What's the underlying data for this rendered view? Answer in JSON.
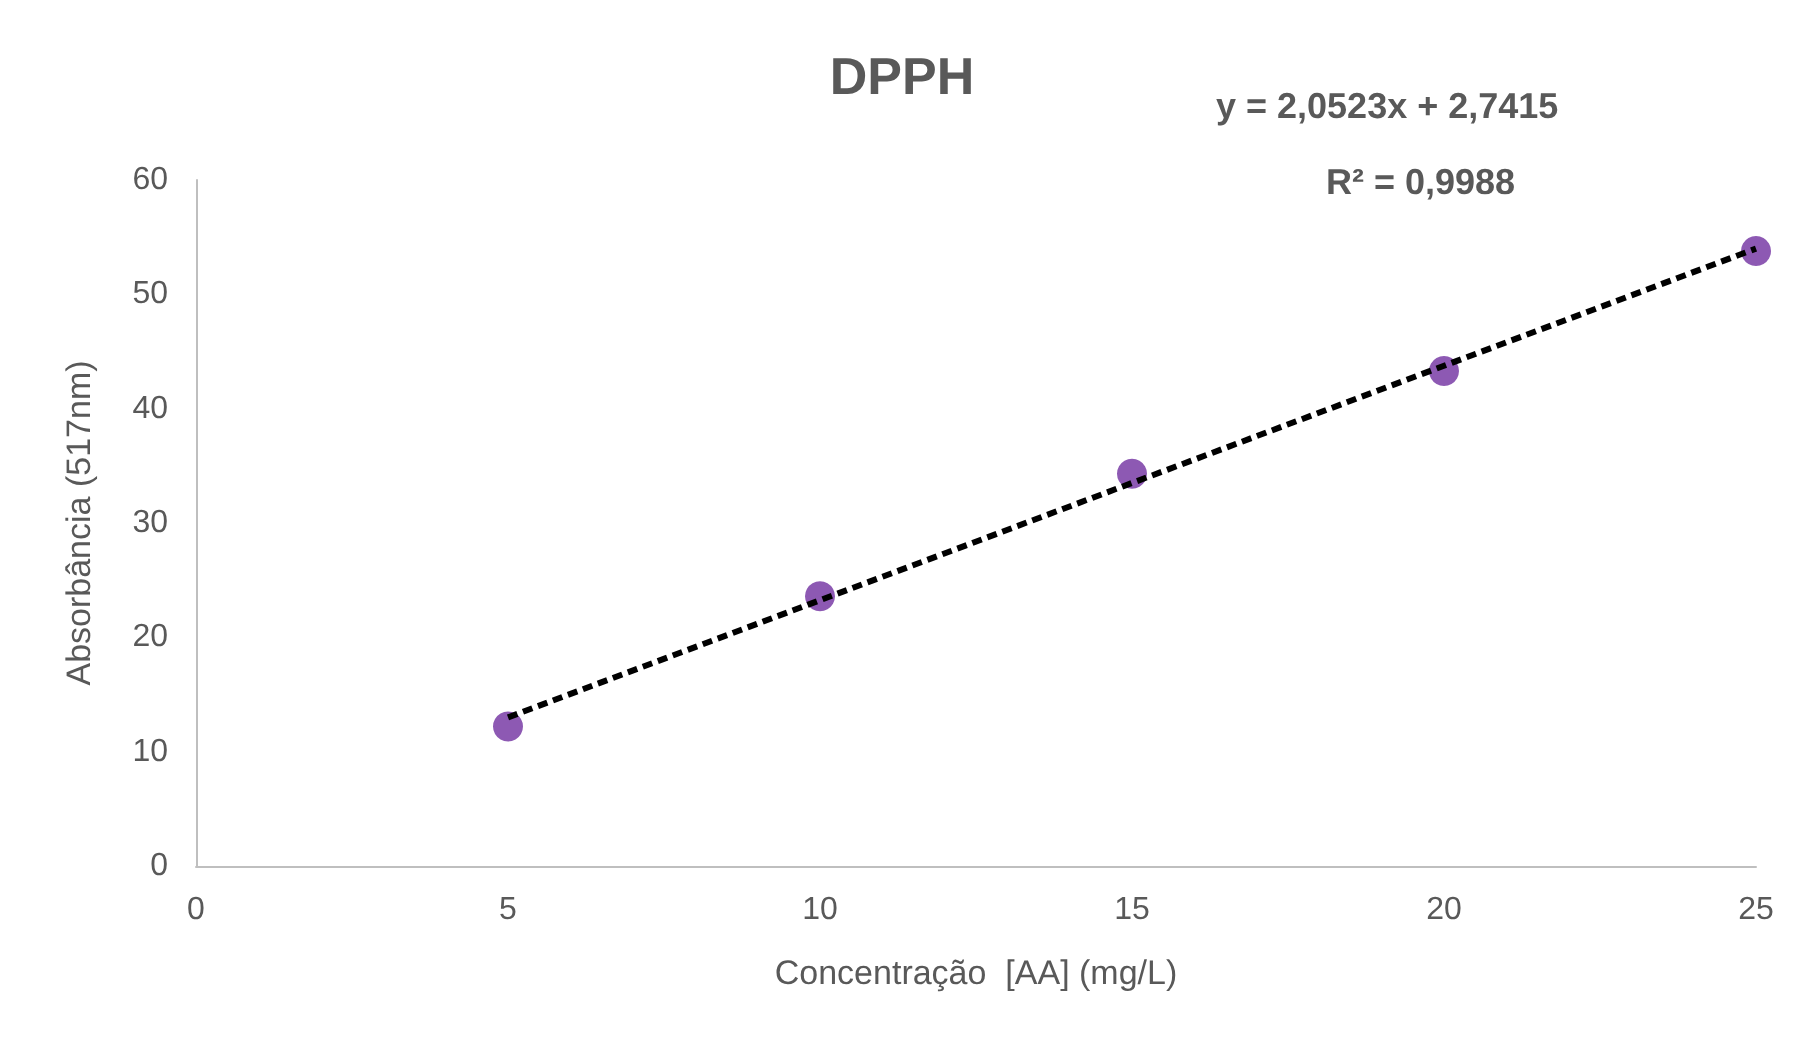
{
  "chart_data": {
    "type": "scatter",
    "title": "DPPH",
    "xlabel": "Concentração  [AA] (mg/L)",
    "ylabel": "Absorbância (517nm)",
    "xlim": [
      0,
      25
    ],
    "xticks": [
      0,
      5,
      10,
      15,
      20,
      25
    ],
    "ylim": [
      0,
      60
    ],
    "yticks": [
      0,
      10,
      20,
      30,
      40,
      50,
      60
    ],
    "series": [
      {
        "color": "#7030a0",
        "marker": "circle",
        "x": [
          5,
          10,
          15,
          20,
          25
        ],
        "values": [
          12.2,
          23.6,
          34.3,
          43.3,
          53.8
        ]
      },
      {
        "type": "line",
        "color": "#000000",
        "marker": "none",
        "line_style": "dashed",
        "x": [
          5,
          25
        ],
        "values": [
          13.0,
          54.0
        ]
      }
    ],
    "annotations": [
      "y = 2,0523x + 2,7415",
      "R² = 0,9988"
    ]
  }
}
